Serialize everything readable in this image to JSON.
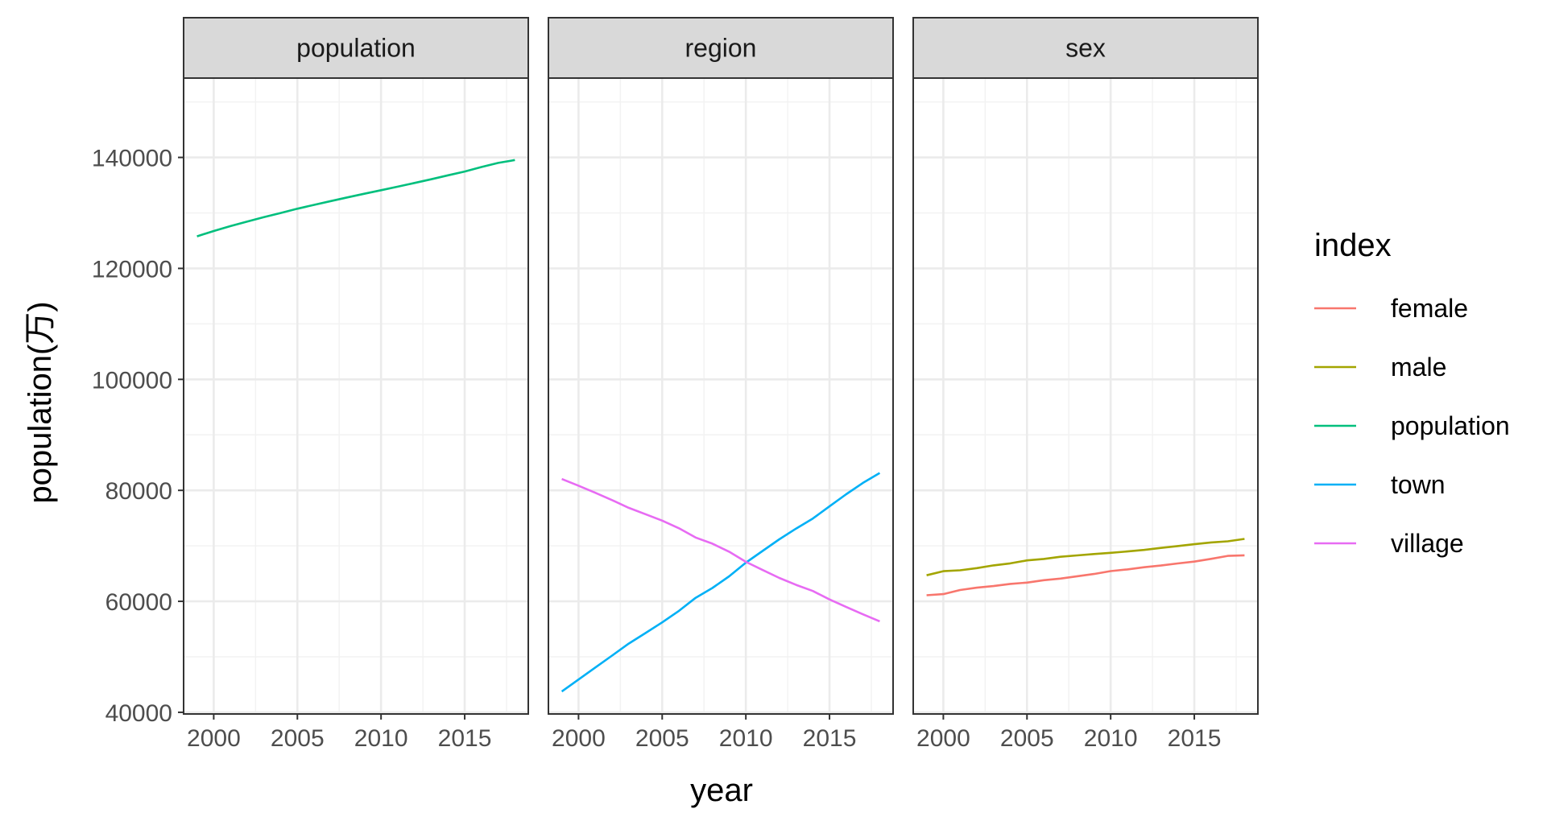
{
  "chart_data": {
    "type": "line",
    "xlabel": "year",
    "ylabel": "population(万)",
    "xlim": [
      1998.2,
      2018.8
    ],
    "ylim": [
      39700,
      154300
    ],
    "x_ticks": [
      2000,
      2005,
      2010,
      2015
    ],
    "y_ticks": [
      40000,
      60000,
      80000,
      100000,
      120000,
      140000
    ],
    "grid": true,
    "legend": {
      "title": "index",
      "placement": "right",
      "entries": [
        "female",
        "male",
        "population",
        "town",
        "village"
      ]
    },
    "colors": {
      "female": "#F8766D",
      "male": "#A3A500",
      "population": "#00BF7D",
      "town": "#00B0F6",
      "village": "#E76BF3"
    },
    "panels": [
      {
        "strip": "population",
        "series": [
          {
            "name": "population",
            "x": [
              1999,
              2000,
              2001,
              2002,
              2003,
              2004,
              2005,
              2006,
              2007,
              2008,
              2009,
              2010,
              2011,
              2012,
              2013,
              2014,
              2015,
              2016,
              2017,
              2018
            ],
            "values": [
              125786,
              126743,
              127627,
              128453,
              129227,
              129988,
              130756,
              131448,
              132129,
              132802,
              133450,
              134091,
              134735,
              135404,
              136072,
              136782,
              137462,
              138271,
              139008,
              139538
            ]
          }
        ]
      },
      {
        "strip": "region",
        "series": [
          {
            "name": "town",
            "x": [
              1999,
              2000,
              2001,
              2002,
              2003,
              2004,
              2005,
              2006,
              2007,
              2008,
              2009,
              2010,
              2011,
              2012,
              2013,
              2014,
              2015,
              2016,
              2017,
              2018
            ],
            "values": [
              43748,
              45906,
              48064,
              50212,
              52376,
              54283,
              56212,
              58288,
              60633,
              62403,
              64512,
              66978,
              69079,
              71182,
              73111,
              74916,
              77116,
              79298,
              81347,
              83137
            ]
          },
          {
            "name": "village",
            "x": [
              1999,
              2000,
              2001,
              2002,
              2003,
              2004,
              2005,
              2006,
              2007,
              2008,
              2009,
              2010,
              2011,
              2012,
              2013,
              2014,
              2015,
              2016,
              2017,
              2018
            ],
            "values": [
              82038,
              80837,
              79563,
              78241,
              76851,
              75705,
              74544,
              73160,
              71496,
              70399,
              68938,
              67113,
              65656,
              64222,
              62961,
              61866,
              60346,
              58973,
              57661,
              56401
            ]
          }
        ]
      },
      {
        "strip": "sex",
        "series": [
          {
            "name": "female",
            "x": [
              1999,
              2000,
              2001,
              2002,
              2003,
              2004,
              2005,
              2006,
              2007,
              2008,
              2009,
              2010,
              2011,
              2012,
              2013,
              2014,
              2015,
              2016,
              2017,
              2018
            ],
            "values": [
              61094,
              61306,
              62034,
              62464,
              62753,
              63140,
              63381,
              63815,
              64101,
              64524,
              64926,
              65451,
              65747,
              66143,
              66443,
              66822,
              67162,
              67653,
              68190,
              68293
            ]
          },
          {
            "name": "male",
            "x": [
              1999,
              2000,
              2001,
              2002,
              2003,
              2004,
              2005,
              2006,
              2007,
              2008,
              2009,
              2010,
              2011,
              2012,
              2013,
              2014,
              2015,
              2016,
              2017,
              2018
            ],
            "values": [
              64692,
              65437,
              65593,
              65989,
              66474,
              66848,
              67375,
              67633,
              68028,
              68278,
              68524,
              68748,
              68988,
              69261,
              69629,
              69960,
              70300,
              70618,
              70818,
              71245
            ]
          }
        ]
      }
    ]
  }
}
